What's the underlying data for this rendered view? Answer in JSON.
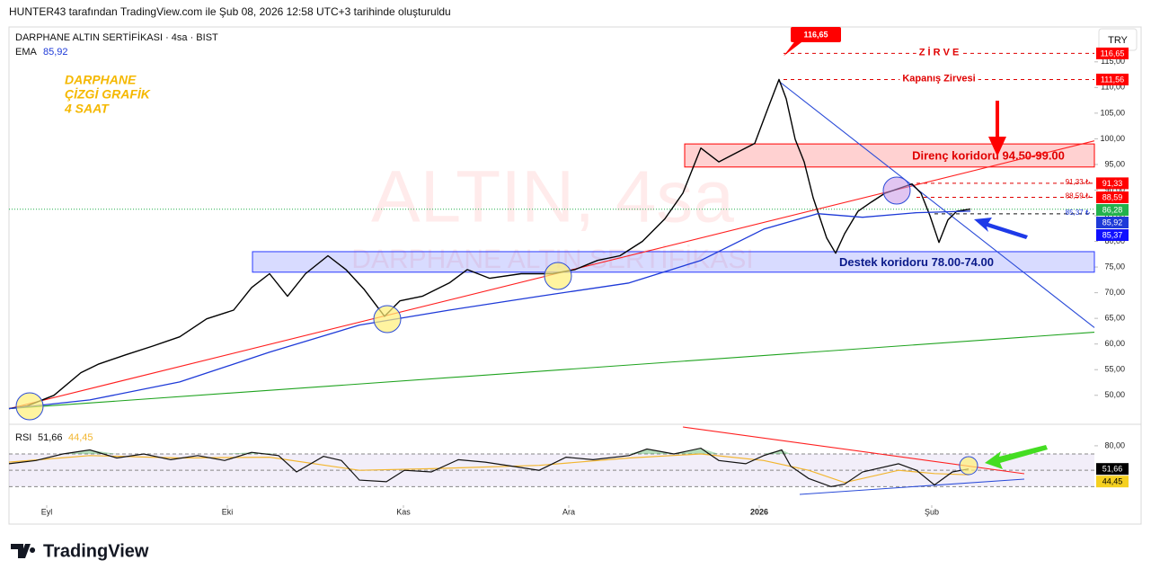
{
  "header": "HUNTER43 tarafından TradingView.com ile Şub 08, 2026 12:58 UTC+3 tarihinde oluşturuldu",
  "footer": "TradingView",
  "chart_data": {
    "type": "line",
    "title": "DARPHANE ALTIN SERTİFİKASI · 4sa · BIST",
    "currency": "TRY",
    "watermark": [
      "ALTIN, 4sa",
      "DARPHANE ALTIN SERTİFİKASI"
    ],
    "note": [
      "DARPHANE",
      "ÇİZGİ GRAFİK",
      "4 SAAT"
    ],
    "xlim": [
      0,
      1208
    ],
    "xticks": [
      {
        "value": 42,
        "label": "Eyl"
      },
      {
        "value": 243,
        "label": "Eki"
      },
      {
        "value": 439,
        "label": "Kas"
      },
      {
        "value": 623,
        "label": "Ara"
      },
      {
        "value": 835,
        "label": "2026"
      },
      {
        "value": 1027,
        "label": "Şub"
      }
    ],
    "ylim": [
      44.7,
      121.8
    ],
    "yticks": [
      {
        "value": 50,
        "label": "50,00"
      },
      {
        "value": 55,
        "label": "55,00"
      },
      {
        "value": 60,
        "label": "60,00"
      },
      {
        "value": 65,
        "label": "65,00"
      },
      {
        "value": 70,
        "label": "70,00"
      },
      {
        "value": 75,
        "label": "75,00"
      },
      {
        "value": 80,
        "label": "80,00"
      },
      {
        "value": 85,
        "label": "85,00"
      },
      {
        "value": 90,
        "label": "90,00"
      },
      {
        "value": 95,
        "label": "95,00"
      },
      {
        "value": 100,
        "label": "100,00"
      },
      {
        "value": 105,
        "label": "105,00"
      },
      {
        "value": 110,
        "label": "110,00"
      },
      {
        "value": 115,
        "label": "115,00"
      }
    ],
    "series": [
      {
        "color": "#000000",
        "x": [
          0,
          20,
          50,
          80,
          100,
          130,
          160,
          190,
          220,
          250,
          270,
          290,
          310,
          330,
          355,
          375,
          395,
          418,
          435,
          460,
          490,
          510,
          535,
          570,
          605,
          630,
          655,
          680,
          705,
          730,
          750,
          770,
          790,
          810,
          830,
          845,
          857,
          865,
          875,
          885,
          895,
          910,
          920,
          930,
          945,
          960,
          975,
          990,
          1005,
          1015,
          1025,
          1035,
          1045,
          1055,
          1070
        ],
        "values": [
          47.4,
          47.9,
          50.0,
          54.4,
          56.1,
          57.9,
          59.6,
          61.4,
          64.9,
          66.6,
          71.0,
          73.7,
          69.3,
          73.7,
          77.2,
          74.5,
          70.7,
          65.4,
          68.4,
          69.3,
          71.9,
          74.5,
          72.8,
          73.7,
          73.7,
          74.5,
          76.3,
          77.2,
          80.0,
          84.4,
          89.4,
          98.2,
          95.5,
          97.3,
          99.1,
          106.1,
          111.56,
          107.8,
          99.9,
          95.5,
          88.5,
          80.7,
          77.7,
          81.5,
          85.9,
          87.7,
          89.4,
          90.3,
          91.2,
          89.4,
          85.0,
          79.8,
          84.2,
          85.9,
          86.3
        ]
      },
      {
        "name": "EMA",
        "color": "#1e3ad8",
        "x": [
          0,
          90,
          190,
          290,
          390,
          490,
          590,
          690,
          770,
          840,
          900,
          950,
          1010,
          1070
        ],
        "values": [
          47.4,
          49.1,
          52.6,
          58.4,
          63.7,
          66.6,
          69.3,
          71.9,
          76.3,
          82.4,
          85.4,
          84.7,
          85.6,
          85.9
        ]
      }
    ],
    "trendlines": [
      {
        "color": "#ff2020",
        "x": [
          0,
          1208
        ],
        "values": [
          47.4,
          99.6
        ]
      },
      {
        "color": "#1fa31f",
        "x": [
          0,
          1208
        ],
        "values": [
          47.4,
          62.3
        ]
      },
      {
        "color": "#2a4bd8",
        "x": [
          857,
          1208
        ],
        "values": [
          111.2,
          63.2
        ]
      }
    ],
    "zones": [
      {
        "label": "Direnç  koridoru 94.50-99.00",
        "color": "#ff0000",
        "text_color": "#e00000",
        "x": [
          752,
          1208
        ],
        "values": [
          94.5,
          99
        ]
      },
      {
        "label": "Destek  koridoru 78.00-74.00",
        "color": "#2838ff",
        "text_color": "#0a1a8a",
        "x": [
          271,
          1208
        ],
        "values": [
          74,
          78
        ]
      }
    ],
    "levels": [
      {
        "text": "Z İ R V E",
        "value": 116.65,
        "color": "#e00000",
        "x": [
          862,
          1208
        ]
      },
      {
        "text": "Kapanış  Zirvesi",
        "value": 111.56,
        "color": "#e00000",
        "x": [
          862,
          1208
        ]
      },
      {
        "value": 91.33,
        "value_label": "91,33 ₺",
        "color": "#e00000",
        "x": [
          1010,
          1208
        ]
      },
      {
        "value": 88.59,
        "value_label": "88,59 ₺",
        "color": "#e00000",
        "x": [
          1010,
          1208
        ]
      },
      {
        "value": 85.37,
        "value_label": "85,37 ₺",
        "color": "#1e3ad8",
        "x": [
          1030,
          1208
        ]
      }
    ],
    "price_tags": [
      {
        "value": 116.65,
        "label": "116,65",
        "color": "#ff0000"
      },
      {
        "value": 111.56,
        "label": "111,56",
        "color": "#ff0000"
      },
      {
        "value": 91.33,
        "label": "91,33",
        "color": "#ff0000"
      },
      {
        "value": 88.59,
        "label": "88,59",
        "color": "#ff0000"
      },
      {
        "value": 86.28,
        "label": "86,28",
        "color": "#22b14c"
      },
      {
        "value": 85.92,
        "label": "85,92",
        "color": "#1e3ad8"
      },
      {
        "value": 85.37,
        "label": "85,37",
        "color": "#1010ff"
      }
    ],
    "rsi": {
      "name": "RSI",
      "ylim": [
        15,
        103
      ],
      "yticks": [
        {
          "value": 80,
          "label": "80,00"
        }
      ],
      "band": [
        30,
        70
      ],
      "mid": 50,
      "series": [
        {
          "color": "#111111",
          "x": [
            0,
            30,
            60,
            90,
            120,
            150,
            180,
            210,
            240,
            270,
            300,
            320,
            350,
            370,
            390,
            420,
            440,
            470,
            500,
            530,
            560,
            590,
            620,
            650,
            690,
            710,
            740,
            770,
            790,
            820,
            840,
            860,
            870,
            890,
            915,
            930,
            950,
            990,
            1010,
            1030,
            1050,
            1068
          ],
          "values": [
            58,
            62,
            70,
            75,
            65,
            70,
            63,
            68,
            62,
            72,
            68,
            48,
            67,
            62,
            38,
            36,
            50,
            48,
            63,
            60,
            55,
            50,
            66,
            63,
            68,
            76,
            70,
            77,
            62,
            58,
            68,
            75,
            55,
            40,
            30,
            33,
            48,
            58,
            50,
            32,
            48,
            51.66
          ]
        },
        {
          "color": "#f2b630",
          "x": [
            0,
            90,
            190,
            290,
            390,
            470,
            590,
            690,
            770,
            840,
            890,
            930,
            990,
            1030,
            1068
          ],
          "values": [
            60,
            68,
            65,
            66,
            50,
            52,
            56,
            65,
            70,
            62,
            50,
            35,
            50,
            46,
            44.45
          ]
        }
      ],
      "tags": [
        {
          "value": 51.66,
          "label": "51,66",
          "color": "#000000"
        },
        {
          "value": 44.45,
          "label": "44,45",
          "color": "#f5d020"
        }
      ],
      "trendlines": [
        {
          "color": "#ff2020",
          "x": [
            750,
            1130
          ],
          "values": [
            103,
            45.8
          ]
        },
        {
          "color": "#2a4bd8",
          "x": [
            880,
            1130
          ],
          "values": [
            20.5,
            39.2
          ]
        }
      ]
    }
  }
}
